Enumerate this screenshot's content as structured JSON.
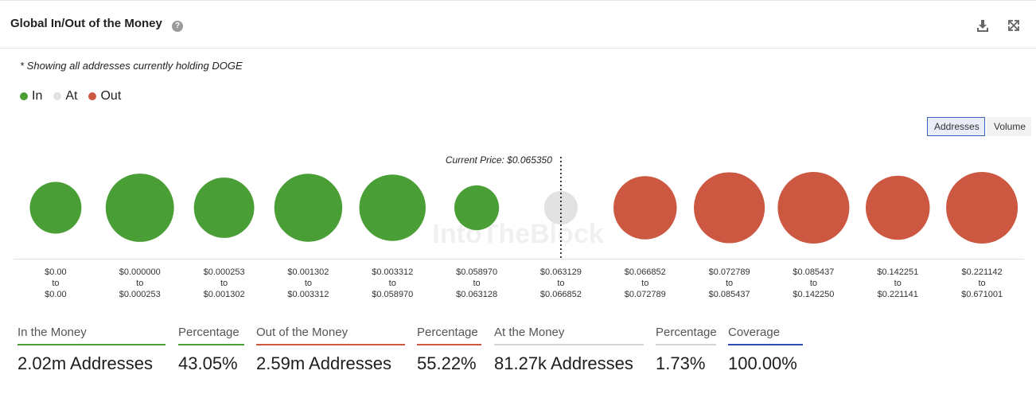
{
  "header": {
    "title": "Global In/Out of the Money",
    "help_glyph": "?"
  },
  "note": "* Showing all addresses currently holding DOGE",
  "legend": [
    {
      "label": "In",
      "color": "#4a9e36"
    },
    {
      "label": "At",
      "color": "#e2e2e2"
    },
    {
      "label": "Out",
      "color": "#cc5841"
    }
  ],
  "toggles": {
    "addresses": "Addresses",
    "volume": "Volume",
    "active": "addresses"
  },
  "watermark": "IntoTheBlock",
  "chart_data": {
    "type": "bubble",
    "metric": "Addresses",
    "current_price_label": "Current Price: $0.065350",
    "current_price": 0.06535,
    "bins": [
      {
        "from": "$0.00",
        "to": "$0.00",
        "status": "in",
        "relative_size": 0.52
      },
      {
        "from": "$0.000000",
        "to": "$0.000253",
        "status": "in",
        "relative_size": 0.91
      },
      {
        "from": "$0.000253",
        "to": "$0.001302",
        "status": "in",
        "relative_size": 0.71
      },
      {
        "from": "$0.001302",
        "to": "$0.003312",
        "status": "in",
        "relative_size": 0.9
      },
      {
        "from": "$0.003312",
        "to": "$0.058970",
        "status": "in",
        "relative_size": 0.86
      },
      {
        "from": "$0.058970",
        "to": "$0.063128",
        "status": "in",
        "relative_size": 0.39
      },
      {
        "from": "$0.063129",
        "to": "$0.066852",
        "status": "at",
        "relative_size": 0.22
      },
      {
        "from": "$0.066852",
        "to": "$0.072789",
        "status": "out",
        "relative_size": 0.78
      },
      {
        "from": "$0.072789",
        "to": "$0.085437",
        "status": "out",
        "relative_size": 0.98
      },
      {
        "from": "$0.085437",
        "to": "$0.142250",
        "status": "out",
        "relative_size": 1.0
      },
      {
        "from": "$0.142251",
        "to": "$0.221141",
        "status": "out",
        "relative_size": 0.8
      },
      {
        "from": "$0.221142",
        "to": "$0.671001",
        "status": "out",
        "relative_size": 1.0
      }
    ],
    "to_word": "to",
    "colors": {
      "in": "#4a9e36",
      "at": "#e2e2e2",
      "out": "#cc5841"
    }
  },
  "stats": [
    {
      "label": "In the Money",
      "value": "2.02m Addresses",
      "color": "#4a9e36"
    },
    {
      "label": "Percentage",
      "value": "43.05%",
      "color": "#4a9e36"
    },
    {
      "label": "Out of the Money",
      "value": "2.59m Addresses",
      "color": "#cc5841"
    },
    {
      "label": "Percentage",
      "value": "55.22%",
      "color": "#cc5841"
    },
    {
      "label": "At the Money",
      "value": "81.27k Addresses",
      "color": "#d4d4d4"
    },
    {
      "label": "Percentage",
      "value": "1.73%",
      "color": "#d4d4d4"
    },
    {
      "label": "Coverage",
      "value": "100.00%",
      "color": "#2a4bb5"
    }
  ]
}
